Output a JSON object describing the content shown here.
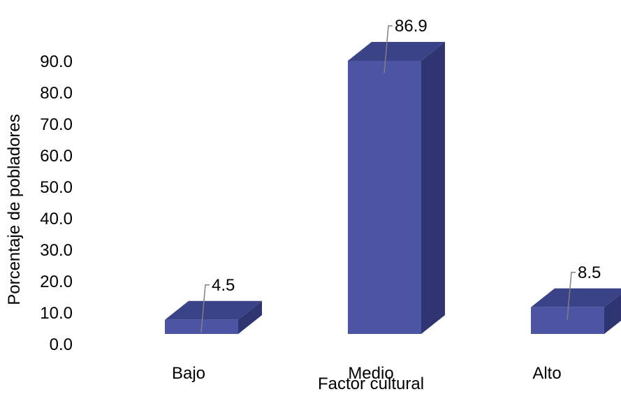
{
  "chart_data": {
    "type": "bar",
    "title": "",
    "xlabel": "Factor cultural",
    "ylabel": "Porcentaje de pobladores",
    "categories": [
      "Bajo",
      "Medio",
      "Alto"
    ],
    "values": [
      4.5,
      86.9,
      8.5
    ],
    "data_labels": [
      "4.5",
      "86.9",
      "8.5"
    ],
    "yticks": [
      0,
      10,
      20,
      30,
      40,
      50,
      60,
      70,
      80,
      90
    ],
    "ytick_labels": [
      "0.0",
      "10.0",
      "20.0",
      "30.0",
      "40.0",
      "50.0",
      "60.0",
      "70.0",
      "80.0",
      "90.0"
    ],
    "ylim": [
      0,
      90
    ],
    "grid": false,
    "legend": "none",
    "colors": {
      "bar_front": "#4B55A3",
      "bar_top": "#3A4288",
      "bar_side": "#2E3570",
      "leader_line": "#808080"
    }
  }
}
